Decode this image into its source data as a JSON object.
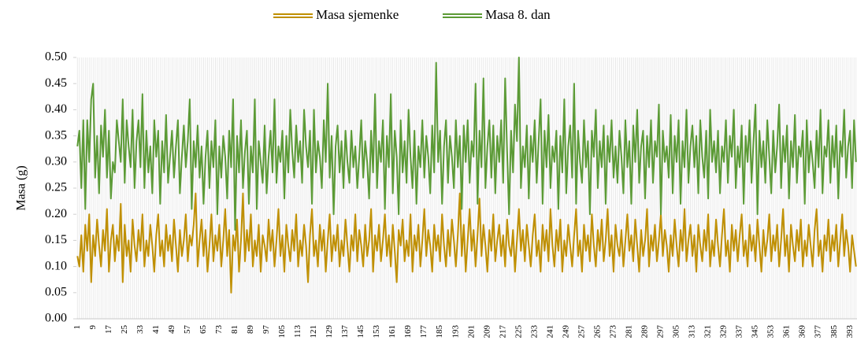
{
  "chart_data": {
    "type": "line",
    "y_label": "Masa (g)",
    "legend": "top",
    "ylim": [
      0,
      0.5
    ],
    "yticks": [
      {
        "value": 0,
        "label": "0.00"
      },
      {
        "value": 0.05,
        "label": "0.05"
      },
      {
        "value": 0.1,
        "label": "0.10"
      },
      {
        "value": 0.15,
        "label": "0.15"
      },
      {
        "value": 0.2,
        "label": "0.20"
      },
      {
        "value": 0.25,
        "label": "0.25"
      },
      {
        "value": 0.3,
        "label": "0.30"
      },
      {
        "value": 0.35,
        "label": "0.35"
      },
      {
        "value": 0.4,
        "label": "0.40"
      },
      {
        "value": 0.45,
        "label": "0.45"
      },
      {
        "value": 0.5,
        "label": "0.50"
      }
    ],
    "categories": [
      "1",
      null,
      null,
      null,
      null,
      null,
      null,
      null,
      "9",
      null,
      null,
      null,
      null,
      null,
      null,
      null,
      "17",
      null,
      null,
      null,
      null,
      null,
      null,
      null,
      "25",
      null,
      null,
      null,
      null,
      null,
      null,
      null,
      "33",
      null,
      null,
      null,
      null,
      null,
      null,
      null,
      "41",
      null,
      null,
      null,
      null,
      null,
      null,
      null,
      "49",
      null,
      null,
      null,
      null,
      null,
      null,
      null,
      "57",
      null,
      null,
      null,
      null,
      null,
      null,
      null,
      "65",
      null,
      null,
      null,
      null,
      null,
      null,
      null,
      "73",
      null,
      null,
      null,
      null,
      null,
      null,
      null,
      "81",
      null,
      null,
      null,
      null,
      null,
      null,
      null,
      "89",
      null,
      null,
      null,
      null,
      null,
      null,
      null,
      "97",
      null,
      null,
      null,
      null,
      null,
      null,
      null,
      "105",
      null,
      null,
      null,
      null,
      null,
      null,
      null,
      "113",
      null,
      null,
      null,
      null,
      null,
      null,
      null,
      "121",
      null,
      null,
      null,
      null,
      null,
      null,
      null,
      "129",
      null,
      null,
      null,
      null,
      null,
      null,
      null,
      "137",
      null,
      null,
      null,
      null,
      null,
      null,
      null,
      "145",
      null,
      null,
      null,
      null,
      null,
      null,
      null,
      "153",
      null,
      null,
      null,
      null,
      null,
      null,
      null,
      "161",
      null,
      null,
      null,
      null,
      null,
      null,
      null,
      "169",
      null,
      null,
      null,
      null,
      null,
      null,
      null,
      "177",
      null,
      null,
      null,
      null,
      null,
      null,
      null,
      "185",
      null,
      null,
      null,
      null,
      null,
      null,
      null,
      "193",
      null,
      null,
      null,
      null,
      null,
      null,
      null,
      "201",
      null,
      null,
      null,
      null,
      null,
      null,
      null,
      "209",
      null,
      null,
      null,
      null,
      null,
      null,
      null,
      "217",
      null,
      null,
      null,
      null,
      null,
      null,
      null,
      "225",
      null,
      null,
      null,
      null,
      null,
      null,
      null,
      "233",
      null,
      null,
      null,
      null,
      null,
      null,
      null,
      "241",
      null,
      null,
      null,
      null,
      null,
      null,
      null,
      "249",
      null,
      null,
      null,
      null,
      null,
      null,
      null,
      "257",
      null,
      null,
      null,
      null,
      null,
      null,
      null,
      "265",
      null,
      null,
      null,
      null,
      null,
      null,
      null,
      "273",
      null,
      null,
      null,
      null,
      null,
      null,
      null,
      "281",
      null,
      null,
      null,
      null,
      null,
      null,
      null,
      "289",
      null,
      null,
      null,
      null,
      null,
      null,
      null,
      "297",
      null,
      null,
      null,
      null,
      null,
      null,
      null,
      "305",
      null,
      null,
      null,
      null,
      null,
      null,
      null,
      "313",
      null,
      null,
      null,
      null,
      null,
      null,
      null,
      "321",
      null,
      null,
      null,
      null,
      null,
      null,
      null,
      "329",
      null,
      null,
      null,
      null,
      null,
      null,
      null,
      "337",
      null,
      null,
      null,
      null,
      null,
      null,
      null,
      "345",
      null,
      null,
      null,
      null,
      null,
      null,
      null,
      "353",
      null,
      null,
      null,
      null,
      null,
      null,
      null,
      "361",
      null,
      null,
      null,
      null,
      null,
      null,
      null,
      "369",
      null,
      null,
      null,
      null,
      null,
      null,
      null,
      "377",
      null,
      null,
      null,
      null,
      null,
      null,
      null,
      "385",
      null,
      null,
      null,
      null,
      null,
      null,
      null,
      "393",
      null,
      null,
      null
    ],
    "series": [
      {
        "name": "Masa sjemenke",
        "color": "#bf8f00",
        "values": [
          0.12,
          0.1,
          0.16,
          0.09,
          0.18,
          0.13,
          0.2,
          0.07,
          0.16,
          0.12,
          0.19,
          0.14,
          0.1,
          0.17,
          0.13,
          0.21,
          0.09,
          0.15,
          0.18,
          0.11,
          0.16,
          0.13,
          0.22,
          0.07,
          0.18,
          0.12,
          0.15,
          0.09,
          0.19,
          0.14,
          0.11,
          0.17,
          0.13,
          0.2,
          0.1,
          0.15,
          0.12,
          0.18,
          0.14,
          0.09,
          0.16,
          0.2,
          0.12,
          0.15,
          0.1,
          0.18,
          0.13,
          0.16,
          0.11,
          0.19,
          0.14,
          0.09,
          0.17,
          0.12,
          0.15,
          0.2,
          0.11,
          0.16,
          0.14,
          0.18,
          0.24,
          0.1,
          0.15,
          0.19,
          0.12,
          0.17,
          0.09,
          0.14,
          0.2,
          0.11,
          0.16,
          0.13,
          0.18,
          0.1,
          0.15,
          0.21,
          0.12,
          0.17,
          0.05,
          0.16,
          0.13,
          0.19,
          0.09,
          0.15,
          0.24,
          0.11,
          0.17,
          0.13,
          0.2,
          0.1,
          0.15,
          0.12,
          0.18,
          0.09,
          0.16,
          0.14,
          0.11,
          0.19,
          0.13,
          0.17,
          0.1,
          0.15,
          0.21,
          0.12,
          0.16,
          0.09,
          0.18,
          0.14,
          0.11,
          0.17,
          0.13,
          0.2,
          0.1,
          0.15,
          0.12,
          0.18,
          0.14,
          0.07,
          0.16,
          0.21,
          0.12,
          0.15,
          0.1,
          0.18,
          0.13,
          0.17,
          0.09,
          0.15,
          0.2,
          0.11,
          0.16,
          0.13,
          0.18,
          0.1,
          0.15,
          0.12,
          0.19,
          0.14,
          0.09,
          0.16,
          0.13,
          0.2,
          0.11,
          0.17,
          0.14,
          0.1,
          0.18,
          0.12,
          0.15,
          0.21,
          0.09,
          0.16,
          0.13,
          0.18,
          0.11,
          0.15,
          0.2,
          0.12,
          0.16,
          0.1,
          0.18,
          0.13,
          0.07,
          0.17,
          0.14,
          0.19,
          0.11,
          0.15,
          0.12,
          0.2,
          0.09,
          0.16,
          0.13,
          0.18,
          0.1,
          0.15,
          0.21,
          0.12,
          0.17,
          0.14,
          0.09,
          0.18,
          0.13,
          0.16,
          0.11,
          0.2,
          0.14,
          0.1,
          0.17,
          0.12,
          0.19,
          0.15,
          0.1,
          0.16,
          0.24,
          0.12,
          0.18,
          0.09,
          0.15,
          0.21,
          0.13,
          0.17,
          0.1,
          0.16,
          0.23,
          0.12,
          0.18,
          0.14,
          0.09,
          0.17,
          0.13,
          0.2,
          0.11,
          0.15,
          0.18,
          0.12,
          0.16,
          0.1,
          0.19,
          0.14,
          0.12,
          0.17,
          0.09,
          0.15,
          0.21,
          0.13,
          0.17,
          0.11,
          0.18,
          0.14,
          0.1,
          0.16,
          0.2,
          0.12,
          0.15,
          0.09,
          0.18,
          0.13,
          0.17,
          0.11,
          0.21,
          0.14,
          0.1,
          0.17,
          0.13,
          0.19,
          0.09,
          0.15,
          0.12,
          0.18,
          0.14,
          0.1,
          0.16,
          0.21,
          0.12,
          0.15,
          0.09,
          0.18,
          0.13,
          0.16,
          0.11,
          0.2,
          0.14,
          0.1,
          0.17,
          0.13,
          0.19,
          0.11,
          0.15,
          0.21,
          0.12,
          0.16,
          0.09,
          0.18,
          0.14,
          0.12,
          0.17,
          0.1,
          0.15,
          0.2,
          0.13,
          0.16,
          0.11,
          0.19,
          0.14,
          0.09,
          0.17,
          0.12,
          0.15,
          0.21,
          0.1,
          0.16,
          0.13,
          0.18,
          0.11,
          0.15,
          0.2,
          0.12,
          0.17,
          0.14,
          0.09,
          0.16,
          0.12,
          0.19,
          0.14,
          0.1,
          0.17,
          0.13,
          0.21,
          0.11,
          0.15,
          0.18,
          0.12,
          0.16,
          0.09,
          0.18,
          0.14,
          0.11,
          0.17,
          0.13,
          0.2,
          0.1,
          0.15,
          0.12,
          0.19,
          0.14,
          0.1,
          0.16,
          0.21,
          0.12,
          0.15,
          0.09,
          0.18,
          0.13,
          0.17,
          0.11,
          0.16,
          0.2,
          0.12,
          0.15,
          0.1,
          0.18,
          0.13,
          0.16,
          0.11,
          0.19,
          0.14,
          0.09,
          0.17,
          0.12,
          0.15,
          0.2,
          0.11,
          0.16,
          0.13,
          0.18,
          0.1,
          0.15,
          0.21,
          0.12,
          0.16,
          0.09,
          0.18,
          0.14,
          0.11,
          0.17,
          0.13,
          0.19,
          0.1,
          0.15,
          0.12,
          0.18,
          0.14,
          0.1,
          0.17,
          0.21,
          0.12,
          0.15,
          0.09,
          0.16,
          0.13,
          0.19,
          0.11,
          0.16,
          0.13,
          0.18,
          0.1,
          0.15,
          0.2,
          0.12,
          0.17,
          0.14,
          0.09,
          0.16,
          0.13,
          0.1
        ]
      },
      {
        "name": "Masa 8. dan",
        "color": "#5b9a35",
        "values": [
          0.33,
          0.36,
          0.25,
          0.38,
          0.21,
          0.38,
          0.3,
          0.42,
          0.45,
          0.27,
          0.35,
          0.24,
          0.37,
          0.31,
          0.4,
          0.27,
          0.36,
          0.23,
          0.3,
          0.28,
          0.38,
          0.34,
          0.3,
          0.42,
          0.26,
          0.38,
          0.33,
          0.29,
          0.4,
          0.25,
          0.34,
          0.38,
          0.29,
          0.43,
          0.25,
          0.36,
          0.28,
          0.33,
          0.24,
          0.38,
          0.31,
          0.36,
          0.22,
          0.34,
          0.28,
          0.39,
          0.26,
          0.31,
          0.36,
          0.27,
          0.33,
          0.38,
          0.24,
          0.31,
          0.37,
          0.29,
          0.34,
          0.42,
          0.21,
          0.34,
          0.29,
          0.37,
          0.27,
          0.33,
          0.22,
          0.31,
          0.36,
          0.25,
          0.34,
          0.29,
          0.38,
          0.2,
          0.33,
          0.27,
          0.35,
          0.31,
          0.23,
          0.36,
          0.29,
          0.42,
          0.17,
          0.35,
          0.28,
          0.38,
          0.25,
          0.32,
          0.36,
          0.22,
          0.33,
          0.28,
          0.42,
          0.21,
          0.34,
          0.3,
          0.26,
          0.37,
          0.24,
          0.31,
          0.36,
          0.28,
          0.42,
          0.26,
          0.33,
          0.3,
          0.36,
          0.23,
          0.35,
          0.28,
          0.4,
          0.32,
          0.27,
          0.37,
          0.3,
          0.34,
          0.26,
          0.4,
          0.33,
          0.29,
          0.36,
          0.22,
          0.4,
          0.28,
          0.34,
          0.31,
          0.25,
          0.38,
          0.3,
          0.45,
          0.27,
          0.35,
          0.2,
          0.33,
          0.37,
          0.28,
          0.34,
          0.25,
          0.36,
          0.3,
          0.26,
          0.36,
          0.29,
          0.33,
          0.25,
          0.31,
          0.38,
          0.27,
          0.34,
          0.3,
          0.23,
          0.36,
          0.28,
          0.43,
          0.25,
          0.34,
          0.3,
          0.38,
          0.21,
          0.35,
          0.29,
          0.43,
          0.24,
          0.36,
          0.31,
          0.2,
          0.38,
          0.28,
          0.34,
          0.26,
          0.4,
          0.31,
          0.25,
          0.36,
          0.22,
          0.33,
          0.29,
          0.38,
          0.27,
          0.35,
          0.31,
          0.24,
          0.37,
          0.28,
          0.49,
          0.3,
          0.36,
          0.22,
          0.33,
          0.38,
          0.26,
          0.35,
          0.31,
          0.25,
          0.38,
          0.29,
          0.35,
          0.21,
          0.37,
          0.3,
          0.38,
          0.26,
          0.34,
          0.31,
          0.45,
          0.22,
          0.36,
          0.29,
          0.46,
          0.25,
          0.33,
          0.38,
          0.27,
          0.37,
          0.24,
          0.35,
          0.3,
          0.38,
          0.26,
          0.46,
          0.32,
          0.2,
          0.36,
          0.28,
          0.41,
          0.34,
          0.5,
          0.25,
          0.33,
          0.29,
          0.37,
          0.23,
          0.35,
          0.3,
          0.38,
          0.26,
          0.34,
          0.42,
          0.22,
          0.36,
          0.29,
          0.39,
          0.25,
          0.33,
          0.3,
          0.36,
          0.21,
          0.35,
          0.28,
          0.42,
          0.24,
          0.33,
          0.37,
          0.27,
          0.45,
          0.22,
          0.36,
          0.3,
          0.26,
          0.38,
          0.29,
          0.34,
          0.2,
          0.36,
          0.31,
          0.4,
          0.25,
          0.34,
          0.29,
          0.37,
          0.22,
          0.35,
          0.3,
          0.38,
          0.27,
          0.33,
          0.26,
          0.36,
          0.31,
          0.24,
          0.38,
          0.29,
          0.34,
          0.22,
          0.37,
          0.3,
          0.4,
          0.26,
          0.33,
          0.36,
          0.23,
          0.35,
          0.29,
          0.38,
          0.26,
          0.34,
          0.31,
          0.41,
          0.2,
          0.36,
          0.3,
          0.33,
          0.27,
          0.39,
          0.24,
          0.35,
          0.3,
          0.38,
          0.22,
          0.34,
          0.29,
          0.4,
          0.26,
          0.33,
          0.37,
          0.29,
          0.35,
          0.24,
          0.38,
          0.31,
          0.27,
          0.36,
          0.23,
          0.4,
          0.3,
          0.34,
          0.28,
          0.36,
          0.24,
          0.33,
          0.3,
          0.38,
          0.26,
          0.35,
          0.31,
          0.4,
          0.25,
          0.33,
          0.29,
          0.37,
          0.22,
          0.35,
          0.3,
          0.38,
          0.26,
          0.34,
          0.41,
          0.2,
          0.36,
          0.29,
          0.34,
          0.26,
          0.38,
          0.31,
          0.24,
          0.36,
          0.28,
          0.33,
          0.41,
          0.25,
          0.35,
          0.3,
          0.37,
          0.23,
          0.34,
          0.29,
          0.39,
          0.26,
          0.33,
          0.31,
          0.36,
          0.22,
          0.38,
          0.28,
          0.34,
          0.3,
          0.25,
          0.36,
          0.29,
          0.4,
          0.24,
          0.33,
          0.31,
          0.38,
          0.26,
          0.35,
          0.29,
          0.37,
          0.23,
          0.34,
          0.31,
          0.4,
          0.27,
          0.33,
          0.36,
          0.25,
          0.38,
          0.3
        ]
      }
    ]
  }
}
